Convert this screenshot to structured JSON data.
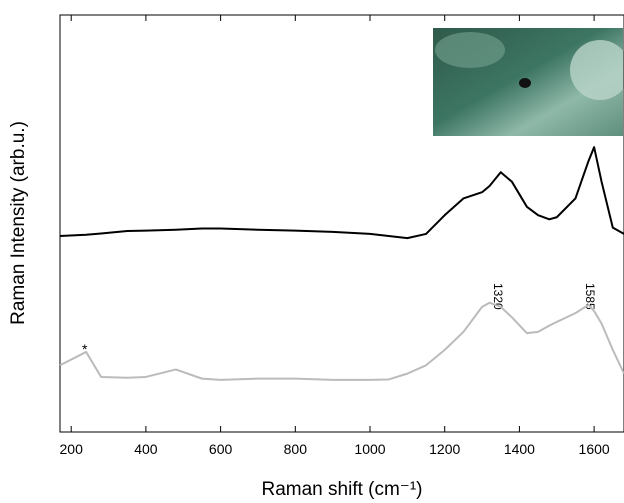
{
  "chart_data": {
    "type": "line",
    "xlabel": "Raman shift (cm⁻¹)",
    "ylabel": "Raman Intensity (arb.u.)",
    "x": [
      170,
      240,
      280,
      350,
      400,
      480,
      550,
      600,
      700,
      800,
      900,
      1000,
      1050,
      1100,
      1150,
      1200,
      1250,
      1300,
      1320,
      1350,
      1380,
      1420,
      1450,
      1480,
      1500,
      1550,
      1585,
      1600,
      1620,
      1650,
      1680
    ],
    "series": [
      {
        "color": "#000000",
        "values": [
          47,
          47.3,
          47.6,
          48.2,
          48.3,
          48.5,
          48.8,
          48.8,
          48.5,
          48.3,
          48,
          47.5,
          47,
          46.5,
          47.5,
          52,
          56,
          57.5,
          59,
          62.3,
          60,
          54,
          52,
          51,
          51.5,
          56,
          65,
          68.3,
          60,
          49,
          47.5
        ]
      },
      {
        "color": "#bbbbbb",
        "values": [
          16,
          19.2,
          13.2,
          13,
          13.2,
          15,
          12.8,
          12.5,
          12.8,
          12.8,
          12.5,
          12.5,
          12.6,
          14,
          16,
          19.7,
          24,
          30,
          31,
          30,
          27.5,
          23.7,
          24,
          25.5,
          26.4,
          28.5,
          30.5,
          29,
          26,
          19.7,
          14
        ]
      }
    ],
    "xlim": [
      170,
      1680
    ],
    "ylim": [
      0,
      100
    ],
    "xticks": [
      200,
      400,
      600,
      800,
      1000,
      1200,
      1400,
      1600
    ],
    "annotations": [
      "1320",
      "1585",
      "*"
    ]
  }
}
